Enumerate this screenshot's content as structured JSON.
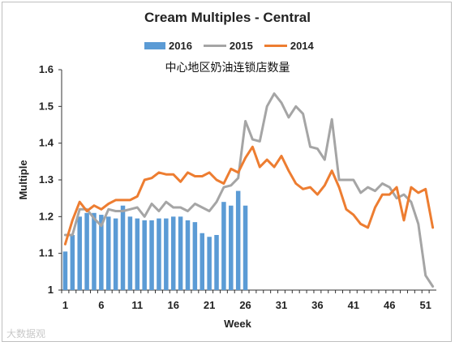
{
  "chart_data": {
    "type": "bar",
    "title": "Cream Multiples - Central",
    "subtitle": "中心地区奶油连锁店数量",
    "xlabel": "Week",
    "ylabel": "Multiple",
    "xlim": [
      1,
      52
    ],
    "ylim": [
      1,
      1.6
    ],
    "xticks": [
      1,
      6,
      11,
      16,
      21,
      26,
      31,
      36,
      41,
      46,
      51
    ],
    "yticks": [
      1,
      1.1,
      1.2,
      1.3,
      1.4,
      1.5,
      1.6
    ],
    "ytick_labels": [
      "1",
      "1.1",
      "1.2",
      "1.3",
      "1.4",
      "1.5",
      "1.6"
    ],
    "grid": false,
    "legend_position": "top",
    "colors": {
      "s2016": "#5b9bd5",
      "s2015": "#a5a5a5",
      "s2014": "#ed7d31"
    },
    "series": [
      {
        "name": "2016",
        "type": "bar",
        "x": [
          1,
          2,
          3,
          4,
          5,
          6,
          7,
          8,
          9,
          10,
          11,
          12,
          13,
          14,
          15,
          16,
          17,
          18,
          19,
          20,
          21,
          22,
          23,
          24,
          25,
          26
        ],
        "values": [
          1.105,
          1.15,
          1.2,
          1.21,
          1.21,
          1.205,
          1.2,
          1.195,
          1.23,
          1.2,
          1.195,
          1.19,
          1.19,
          1.195,
          1.195,
          1.2,
          1.2,
          1.19,
          1.185,
          1.155,
          1.145,
          1.15,
          1.24,
          1.23,
          1.27,
          1.23
        ]
      },
      {
        "name": "2015",
        "type": "line",
        "x": [
          1,
          2,
          3,
          4,
          5,
          6,
          7,
          8,
          9,
          10,
          11,
          12,
          13,
          14,
          15,
          16,
          17,
          18,
          19,
          20,
          21,
          22,
          23,
          24,
          25,
          26,
          27,
          28,
          29,
          30,
          31,
          32,
          33,
          34,
          35,
          36,
          37,
          38,
          39,
          40,
          41,
          42,
          43,
          44,
          45,
          46,
          47,
          48,
          49,
          50,
          51,
          52
        ],
        "values": [
          1.15,
          1.15,
          1.22,
          1.22,
          1.195,
          1.175,
          1.22,
          1.215,
          1.215,
          1.22,
          1.225,
          1.2,
          1.235,
          1.215,
          1.24,
          1.225,
          1.225,
          1.215,
          1.235,
          1.225,
          1.215,
          1.24,
          1.28,
          1.285,
          1.305,
          1.46,
          1.41,
          1.405,
          1.5,
          1.535,
          1.51,
          1.47,
          1.5,
          1.48,
          1.39,
          1.385,
          1.355,
          1.465,
          1.3,
          1.3,
          1.3,
          1.265,
          1.28,
          1.27,
          1.29,
          1.28,
          1.25,
          1.26,
          1.24,
          1.18,
          1.04,
          1.01
        ]
      },
      {
        "name": "2014",
        "type": "line",
        "x": [
          1,
          2,
          3,
          4,
          5,
          6,
          7,
          8,
          9,
          10,
          11,
          12,
          13,
          14,
          15,
          16,
          17,
          18,
          19,
          20,
          21,
          22,
          23,
          24,
          25,
          26,
          27,
          28,
          29,
          30,
          31,
          32,
          33,
          34,
          35,
          36,
          37,
          38,
          39,
          40,
          41,
          42,
          43,
          44,
          45,
          46,
          47,
          48,
          49,
          50,
          51,
          52
        ],
        "values": [
          1.125,
          1.19,
          1.24,
          1.215,
          1.23,
          1.22,
          1.235,
          1.245,
          1.245,
          1.245,
          1.255,
          1.3,
          1.305,
          1.32,
          1.315,
          1.315,
          1.295,
          1.32,
          1.31,
          1.31,
          1.32,
          1.3,
          1.29,
          1.33,
          1.32,
          1.36,
          1.39,
          1.335,
          1.355,
          1.335,
          1.365,
          1.325,
          1.29,
          1.275,
          1.28,
          1.26,
          1.285,
          1.325,
          1.28,
          1.22,
          1.205,
          1.18,
          1.17,
          1.225,
          1.26,
          1.26,
          1.28,
          1.19,
          1.28,
          1.265,
          1.275,
          1.17
        ]
      }
    ]
  },
  "watermark": "大数据观"
}
